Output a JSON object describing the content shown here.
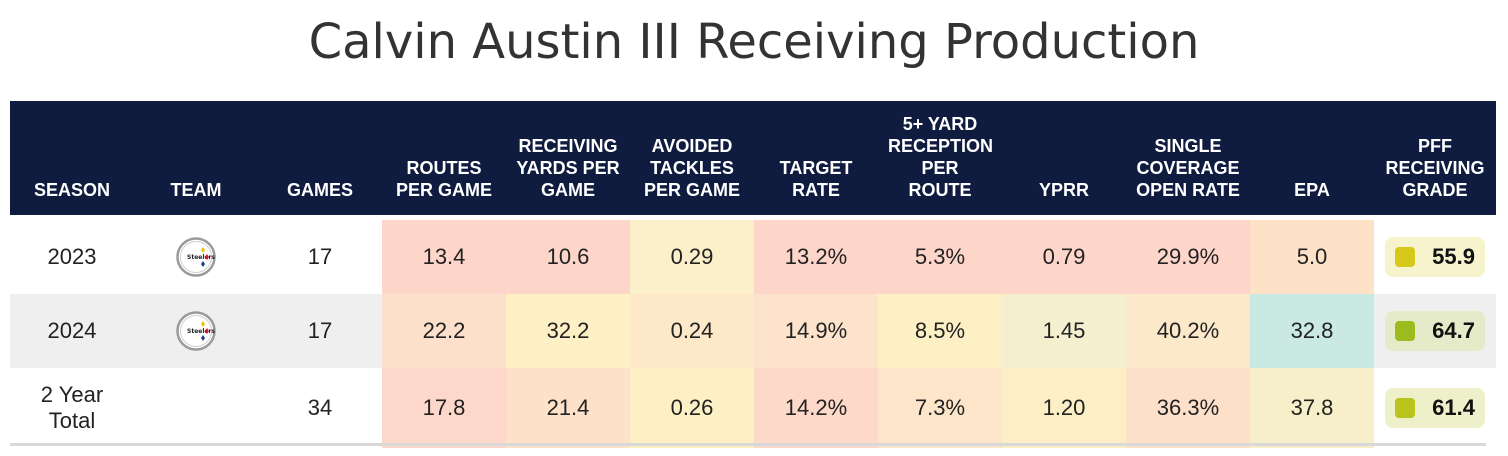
{
  "title": "Calvin Austin III Receiving Production",
  "columns": [
    {
      "key": "season",
      "label": "SEASON",
      "width": 124
    },
    {
      "key": "team",
      "label": "TEAM",
      "width": 124
    },
    {
      "key": "games",
      "label": "GAMES",
      "width": 124
    },
    {
      "key": "routes",
      "label": "ROUTES PER GAME",
      "width": 124
    },
    {
      "key": "ryds",
      "label": "RECEIVING YARDS PER GAME",
      "width": 124
    },
    {
      "key": "avoided",
      "label": "AVOIDED TACKLES PER GAME",
      "width": 124
    },
    {
      "key": "target",
      "label": "TARGET RATE",
      "width": 124
    },
    {
      "key": "five",
      "label": "5+ YARD RECEPTION PER ROUTE",
      "width": 124
    },
    {
      "key": "yprr",
      "label": "YPRR",
      "width": 124
    },
    {
      "key": "single",
      "label": "SINGLE COVERAGE OPEN RATE",
      "width": 124
    },
    {
      "key": "epa",
      "label": "EPA",
      "width": 124
    },
    {
      "key": "grade",
      "label": "PFF RECEIVING GRADE",
      "width": 122
    }
  ],
  "rows": [
    {
      "season": "2023",
      "team_logo": "steelers-logo-icon",
      "games": "17",
      "routes": "13.4",
      "ryds": "10.6",
      "avoided": "0.29",
      "target": "13.2%",
      "five": "5.3%",
      "yprr": "0.79",
      "single": "29.9%",
      "epa": "5.0",
      "grade": "55.9",
      "colors": {
        "routes": "#fdd5c9",
        "ryds": "#fdd5c9",
        "avoided": "#fbf0c9",
        "target": "#fdd5c9",
        "five": "#fdd5c9",
        "yprr": "#fdd5c9",
        "single": "#fdd5c9",
        "epa": "#fde2c8",
        "grade_bg": "#f6f3cd",
        "grade_dot": "#d7c91a"
      }
    },
    {
      "season": "2024",
      "team_logo": "steelers-logo-icon",
      "games": "17",
      "routes": "22.2",
      "ryds": "32.2",
      "avoided": "0.24",
      "target": "14.9%",
      "five": "8.5%",
      "yprr": "1.45",
      "single": "40.2%",
      "epa": "32.8",
      "grade": "64.7",
      "colors": {
        "routes": "#fde0cc",
        "ryds": "#fdf0c5",
        "avoided": "#fde8c8",
        "target": "#fde3cb",
        "five": "#fdf0c5",
        "yprr": "#f4f0cf",
        "single": "#fbe9c9",
        "epa": "#c9e9e2",
        "grade_bg": "#e5ebc8",
        "grade_dot": "#9cbb1f"
      }
    },
    {
      "season": "2 Year Total",
      "team_logo": "",
      "games": "34",
      "routes": "17.8",
      "ryds": "21.4",
      "avoided": "0.26",
      "target": "14.2%",
      "five": "7.3%",
      "yprr": "1.20",
      "single": "36.3%",
      "epa": "37.8",
      "grade": "61.4",
      "colors": {
        "routes": "#fdd7c9",
        "ryds": "#fde2c9",
        "avoided": "#fdf0c5",
        "target": "#fdd9ca",
        "five": "#fde5ca",
        "yprr": "#fcefc6",
        "single": "#fde0ca",
        "epa": "#f7efc9",
        "grade_bg": "#eef0c9",
        "grade_dot": "#b9c41c"
      }
    }
  ]
}
